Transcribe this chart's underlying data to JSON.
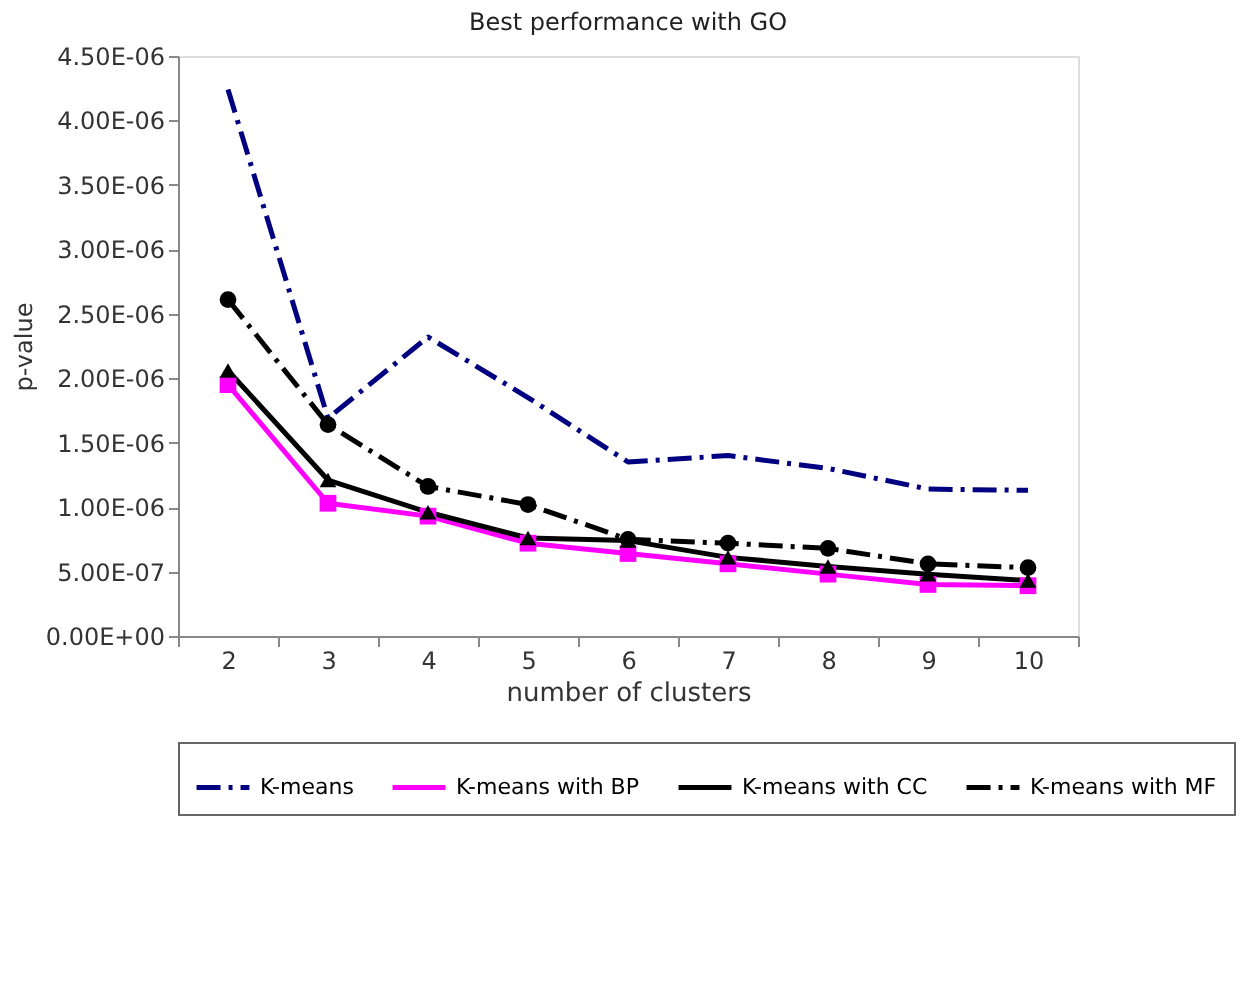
{
  "chart_data": {
    "type": "line",
    "title": "Best performance with GO",
    "xlabel": "number of clusters",
    "ylabel": "p-value",
    "categories": [
      "2",
      "3",
      "4",
      "5",
      "6",
      "7",
      "8",
      "9",
      "10"
    ],
    "ylim": [
      0,
      4.5e-06
    ],
    "yticks": [
      {
        "value": 0,
        "label": "0.00E+00"
      },
      {
        "value": 5e-07,
        "label": "5.00E-07"
      },
      {
        "value": 1e-06,
        "label": "1.00E-06"
      },
      {
        "value": 1.5e-06,
        "label": "1.50E-06"
      },
      {
        "value": 2e-06,
        "label": "2.00E-06"
      },
      {
        "value": 2.5e-06,
        "label": "2.50E-06"
      },
      {
        "value": 3e-06,
        "label": "3.00E-06"
      },
      {
        "value": 3.5e-06,
        "label": "3.50E-06"
      },
      {
        "value": 4e-06,
        "label": "4.00E-06"
      },
      {
        "value": 4.5e-06,
        "label": "4.50E-06"
      }
    ],
    "grid": false,
    "legend": "bottom",
    "series": [
      {
        "name": "K-means",
        "color": "#000080",
        "line_style": "dashed",
        "marker": "none",
        "values": [
          4.24e-06,
          1.69e-06,
          2.32e-06,
          1.85e-06,
          1.35e-06,
          1.4e-06,
          1.3e-06,
          1.14e-06,
          1.13e-06
        ]
      },
      {
        "name": "K-means with BP",
        "color": "#ff00ff",
        "line_style": "solid",
        "marker": "square",
        "values": [
          1.95e-06,
          1.03e-06,
          9.3e-07,
          7.2e-07,
          6.4e-07,
          5.6e-07,
          4.8e-07,
          4e-07,
          3.9e-07
        ]
      },
      {
        "name": "K-means with CC",
        "color": "#000000",
        "line_style": "solid",
        "marker": "triangle",
        "values": [
          2.06e-06,
          1.21e-06,
          9.6e-07,
          7.6e-07,
          7.4e-07,
          6.1e-07,
          5.4e-07,
          4.8e-07,
          4.3e-07
        ]
      },
      {
        "name": "K-means with MF",
        "color": "#000000",
        "line_style": "dashed",
        "marker": "circle",
        "values": [
          2.61e-06,
          1.64e-06,
          1.16e-06,
          1.02e-06,
          7.5e-07,
          7.2e-07,
          6.8e-07,
          5.6e-07,
          5.3e-07
        ]
      }
    ]
  }
}
